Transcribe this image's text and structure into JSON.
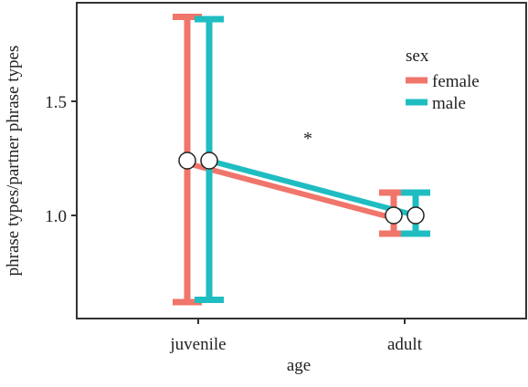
{
  "chart_data": {
    "type": "line",
    "title": "",
    "xlabel": "age",
    "ylabel": "phrase types/partner phrase types",
    "categories": [
      "juvenile",
      "adult"
    ],
    "yticks": [
      "1.0",
      "1.5"
    ],
    "ytick_values": [
      1.0,
      1.5
    ],
    "ylim": [
      0.6,
      1.9
    ],
    "grid": false,
    "legend": {
      "title": "sex",
      "placement": "top-right"
    },
    "annotation": "*",
    "series": [
      {
        "name": "female",
        "color": "#f0756b",
        "values": [
          1.24,
          1.0
        ],
        "lower": [
          0.62,
          0.92
        ],
        "upper": [
          1.87,
          1.1
        ]
      },
      {
        "name": "male",
        "color": "#1fbdc1",
        "values": [
          1.24,
          1.0
        ],
        "lower": [
          0.63,
          0.92
        ],
        "upper": [
          1.86,
          1.1
        ]
      }
    ]
  }
}
